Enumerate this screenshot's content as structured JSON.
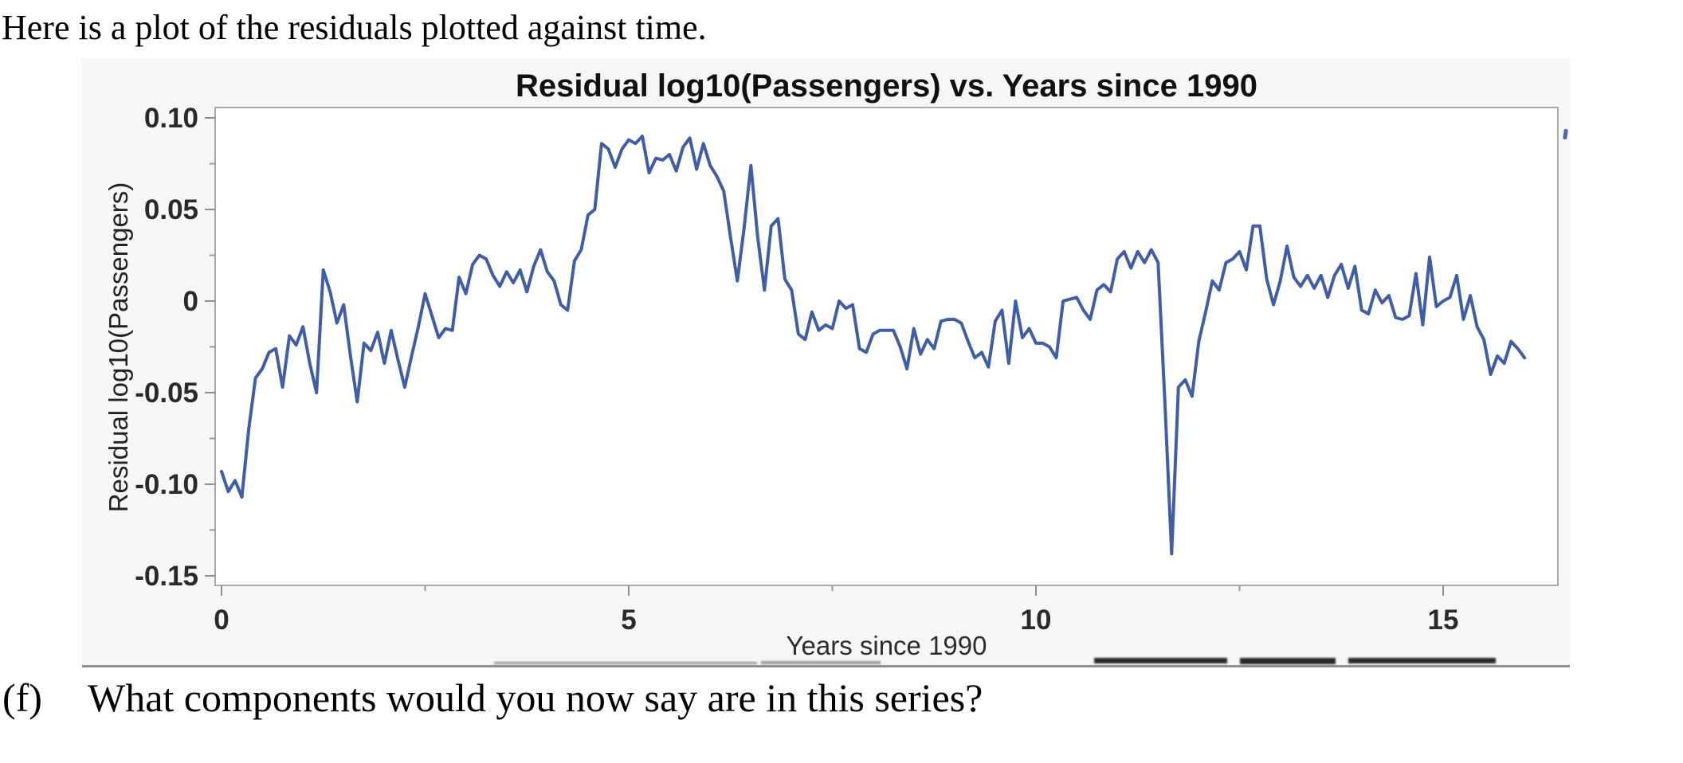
{
  "page": {
    "intro_text": "Here is a plot of the residuals plotted against time.",
    "question_label": "(f)",
    "question_text": "What components would you now say are in this series?"
  },
  "chart_data": {
    "type": "line",
    "title": "Residual log10(Passengers) vs. Years since 1990",
    "xlabel": "Years since 1990",
    "ylabel": "Residual log10(Passengers)",
    "xlim": [
      -0.08,
      16.41
    ],
    "ylim": [
      -0.155,
      0.106
    ],
    "grid": false,
    "legend": "none",
    "line_color": "#3F5EA9",
    "x_ticks_major": [
      0,
      5,
      10,
      15
    ],
    "x_ticks_minor": [
      2.5,
      7.5,
      12.5
    ],
    "y_ticks_major": [
      0.1,
      0.05,
      0,
      -0.05,
      -0.1,
      -0.15
    ],
    "y_tick_labels": [
      "0.10",
      "0.05",
      "0",
      "-0.05",
      "-0.10",
      "-0.15"
    ],
    "y_ticks_minor": [
      0.075,
      0.025,
      -0.025,
      -0.075,
      -0.125
    ],
    "x_start": 0,
    "x_step_years": 0.0833333,
    "values": [
      -0.093,
      -0.104,
      -0.098,
      -0.107,
      -0.07,
      -0.042,
      -0.037,
      -0.028,
      -0.026,
      -0.047,
      -0.019,
      -0.024,
      -0.014,
      -0.034,
      -0.05,
      0.017,
      0.005,
      -0.012,
      -0.002,
      -0.03,
      -0.055,
      -0.023,
      -0.027,
      -0.017,
      -0.034,
      -0.016,
      -0.032,
      -0.047,
      -0.03,
      -0.014,
      0.004,
      -0.008,
      -0.02,
      -0.015,
      -0.016,
      0.013,
      0.004,
      0.02,
      0.025,
      0.023,
      0.014,
      0.008,
      0.016,
      0.01,
      0.017,
      0.005,
      0.019,
      0.028,
      0.016,
      0.011,
      -0.002,
      -0.005,
      0.022,
      0.028,
      0.047,
      0.05,
      0.086,
      0.083,
      0.073,
      0.083,
      0.088,
      0.086,
      0.09,
      0.07,
      0.078,
      0.077,
      0.08,
      0.071,
      0.084,
      0.089,
      0.072,
      0.086,
      0.074,
      0.068,
      0.06,
      0.035,
      0.011,
      0.04,
      0.074,
      0.035,
      0.006,
      0.041,
      0.045,
      0.012,
      0.006,
      -0.018,
      -0.021,
      -0.006,
      -0.016,
      -0.013,
      -0.015,
      0.0,
      -0.004,
      -0.002,
      -0.026,
      -0.028,
      -0.018,
      -0.016,
      -0.016,
      -0.016,
      -0.025,
      -0.037,
      -0.015,
      -0.029,
      -0.021,
      -0.026,
      -0.011,
      -0.01,
      -0.01,
      -0.012,
      -0.022,
      -0.031,
      -0.028,
      -0.036,
      -0.011,
      -0.005,
      -0.034,
      0.0,
      -0.02,
      -0.015,
      -0.023,
      -0.023,
      -0.025,
      -0.031,
      0.0,
      0.001,
      0.002,
      -0.005,
      -0.01,
      0.006,
      0.009,
      0.005,
      0.023,
      0.027,
      0.018,
      0.027,
      0.021,
      0.028,
      0.021,
      -0.055,
      -0.138,
      -0.047,
      -0.043,
      -0.052,
      -0.022,
      -0.006,
      0.011,
      0.006,
      0.021,
      0.023,
      0.027,
      0.017,
      0.041,
      0.041,
      0.012,
      -0.002,
      0.011,
      0.03,
      0.013,
      0.008,
      0.014,
      0.007,
      0.014,
      0.002,
      0.014,
      0.02,
      0.007,
      0.019,
      -0.005,
      -0.007,
      0.006,
      -0.001,
      0.003,
      -0.009,
      -0.01,
      -0.008,
      0.015,
      -0.013,
      0.024,
      -0.003,
      0.0,
      0.002,
      0.014,
      -0.01,
      0.003,
      -0.014,
      -0.021,
      -0.04,
      -0.03,
      -0.034,
      -0.022,
      -0.026,
      -0.031
    ]
  }
}
